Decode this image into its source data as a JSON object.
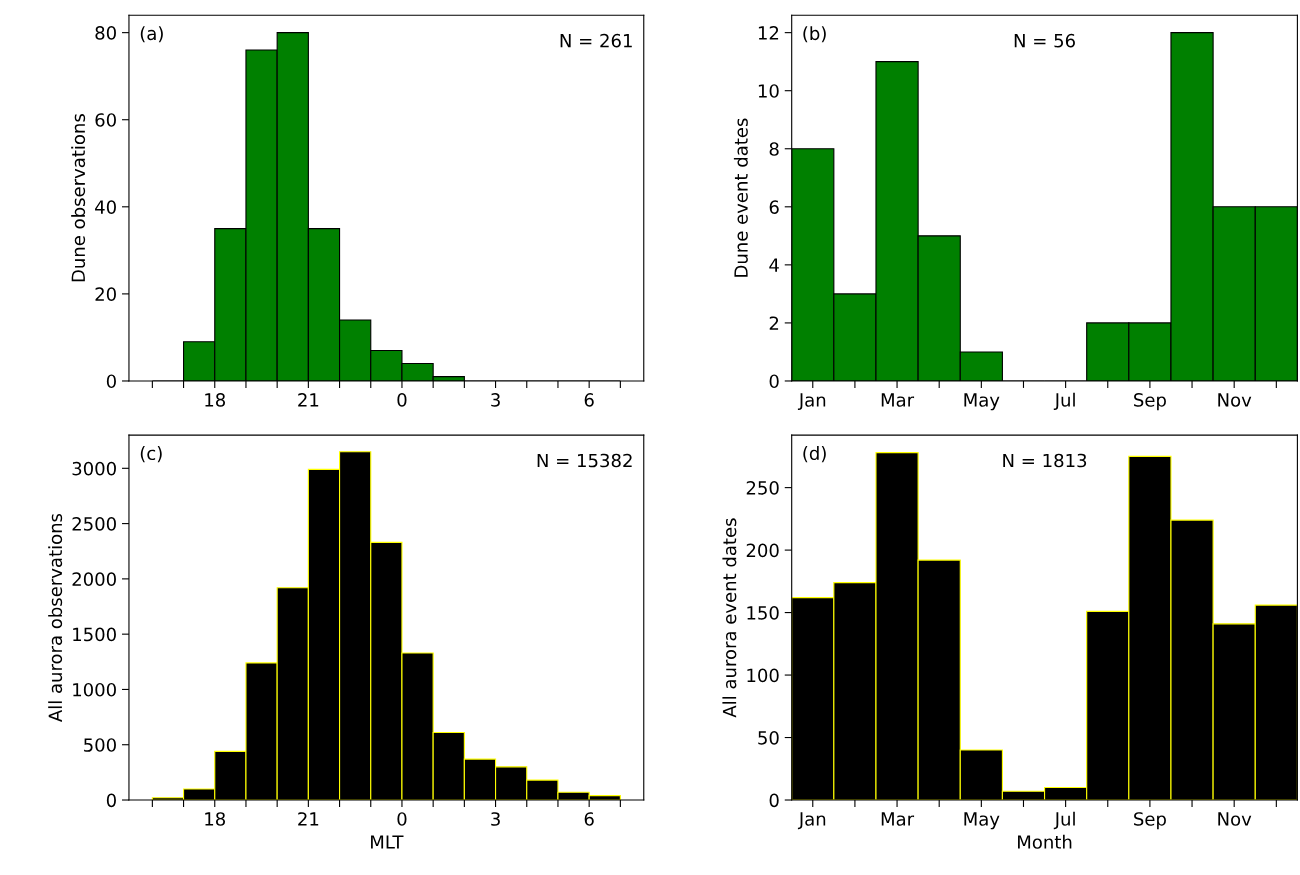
{
  "chart_data": [
    {
      "type": "histogram",
      "ylabel": "Dune observations",
      "annotations": [
        "(a)",
        "N = 261"
      ],
      "categories": [
        null,
        null,
        "18",
        null,
        null,
        "21",
        null,
        null,
        "0",
        null,
        null,
        "3",
        null,
        null,
        "6"
      ],
      "values": [
        0,
        9,
        35,
        76,
        80,
        35,
        14,
        7,
        4,
        1,
        0,
        0,
        0,
        0,
        0
      ],
      "color": "#008000",
      "ylim": [
        0,
        84
      ],
      "yticks": [
        0,
        20,
        40,
        60,
        80
      ],
      "grid": false,
      "legend": false
    },
    {
      "type": "bar",
      "ylabel": "Dune event dates",
      "annotations": [
        "(b)",
        "N = 56"
      ],
      "categories": [
        "Jan",
        null,
        "Mar",
        null,
        "May",
        null,
        "Jul",
        null,
        "Sep",
        null,
        "Nov",
        null
      ],
      "values": [
        8,
        3,
        11,
        5,
        1,
        0,
        0,
        2,
        2,
        12,
        6,
        6
      ],
      "color": "#008000",
      "ylim": [
        0,
        12.6
      ],
      "yticks": [
        0,
        2,
        4,
        6,
        8,
        10,
        12
      ],
      "grid": false,
      "legend": false
    },
    {
      "type": "histogram",
      "xlabel": "MLT",
      "ylabel": "All aurora observations",
      "annotations": [
        "(c)",
        "N = 15382"
      ],
      "categories": [
        null,
        null,
        "18",
        null,
        null,
        "21",
        null,
        null,
        "0",
        null,
        null,
        "3",
        null,
        null,
        "6"
      ],
      "values": [
        20,
        100,
        440,
        1240,
        1920,
        2990,
        3150,
        2330,
        1330,
        610,
        370,
        300,
        180,
        70,
        40
      ],
      "color": "#000000",
      "ylim": [
        0,
        3300
      ],
      "yticks": [
        0,
        500,
        1000,
        1500,
        2000,
        2500,
        3000
      ],
      "grid": false,
      "legend": false
    },
    {
      "type": "bar",
      "xlabel": "Month",
      "ylabel": "All aurora event dates",
      "annotations": [
        "(d)",
        "N = 1813"
      ],
      "categories": [
        "Jan",
        null,
        "Mar",
        null,
        "May",
        null,
        "Jul",
        null,
        "Sep",
        null,
        "Nov",
        null
      ],
      "values": [
        162,
        174,
        278,
        192,
        40,
        7,
        10,
        151,
        275,
        224,
        141,
        156
      ],
      "color": "#000000",
      "ylim": [
        0,
        292
      ],
      "yticks": [
        0,
        50,
        100,
        150,
        200,
        250
      ],
      "grid": false,
      "legend": false
    }
  ]
}
